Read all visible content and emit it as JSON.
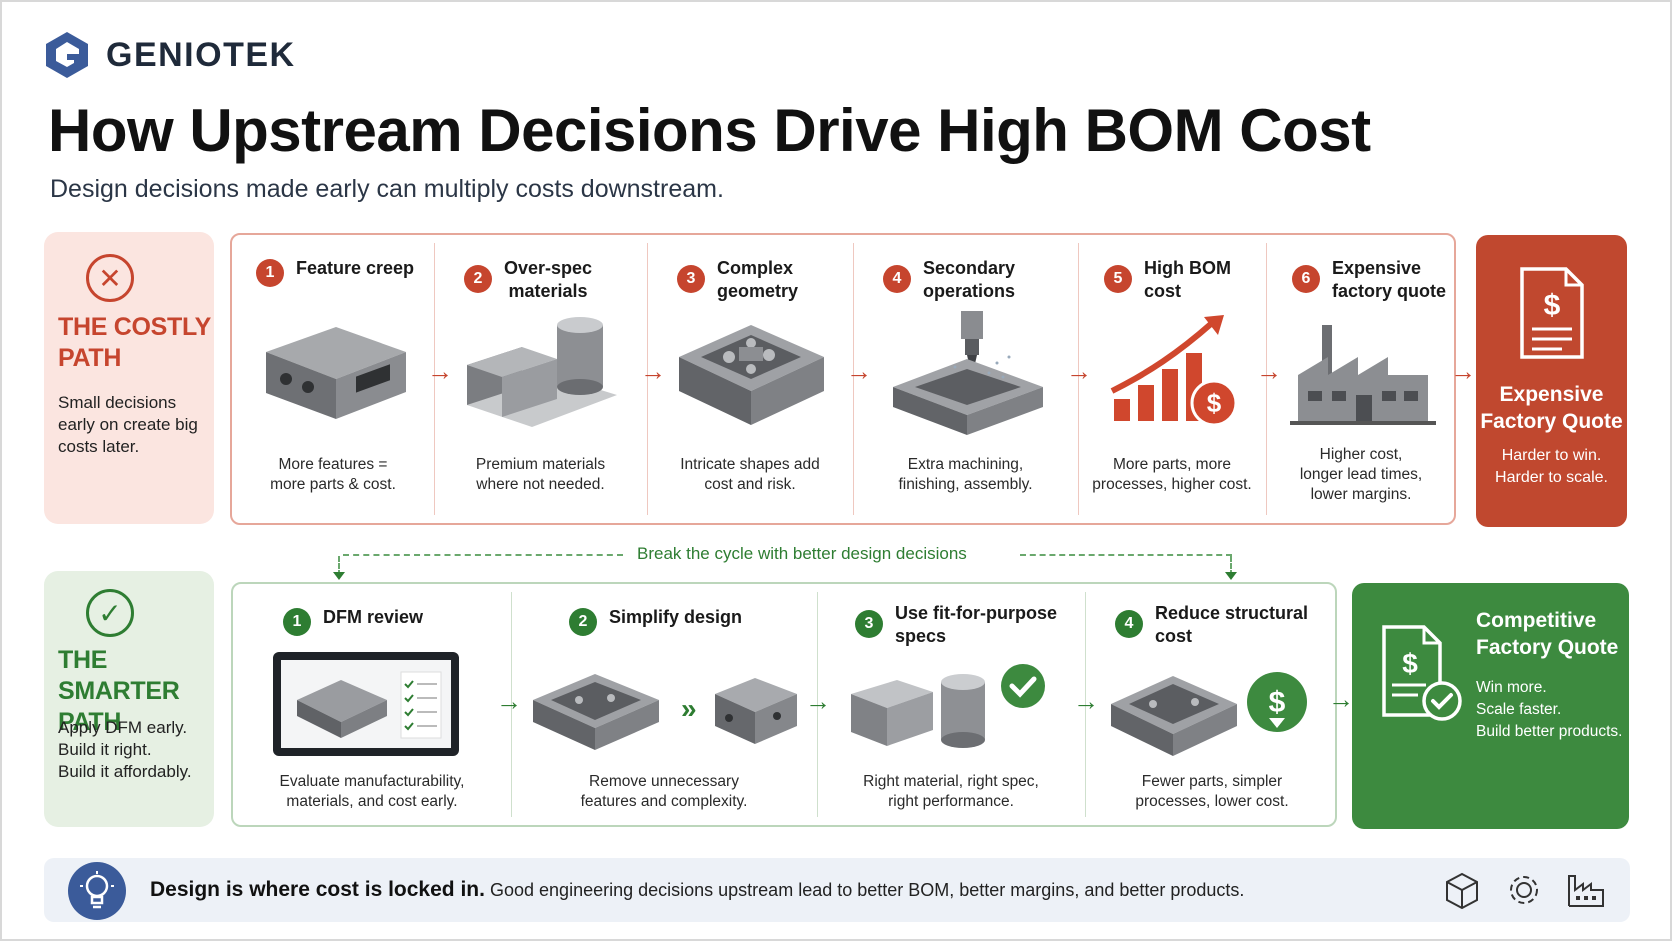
{
  "brand": {
    "name": "GENIOTEK"
  },
  "header": {
    "title": "How Upstream Decisions Drive High BOM Cost",
    "subtitle": "Design decisions made early can multiply costs downstream."
  },
  "costly_path": {
    "title_line1": "THE COSTLY",
    "title_line2": "PATH",
    "body": "Small decisions early on create big costs later.",
    "steps": [
      {
        "num": "1",
        "title_l1": "Feature creep",
        "title_l2": "",
        "desc_l1": "More features =",
        "desc_l2": "more parts & cost.",
        "desc_l3": "",
        "icon": "machined-block-icon"
      },
      {
        "num": "2",
        "title_l1": "Over-spec",
        "title_l2": "materials",
        "desc_l1": "Premium materials",
        "desc_l2": "where not needed.",
        "desc_l3": "",
        "icon": "metal-stock-icon"
      },
      {
        "num": "3",
        "title_l1": "Complex",
        "title_l2": "geometry",
        "desc_l1": "Intricate shapes add",
        "desc_l2": "cost and risk.",
        "desc_l3": "",
        "icon": "complex-part-icon"
      },
      {
        "num": "4",
        "title_l1": "Secondary",
        "title_l2": "operations",
        "desc_l1": "Extra machining,",
        "desc_l2": "finishing, assembly.",
        "desc_l3": "",
        "icon": "milling-icon"
      },
      {
        "num": "5",
        "title_l1": "High BOM",
        "title_l2": "cost",
        "desc_l1": "More parts, more",
        "desc_l2": "processes, higher cost.",
        "desc_l3": "",
        "icon": "rising-cost-icon"
      },
      {
        "num": "6",
        "title_l1": "Expensive",
        "title_l2": "factory quote",
        "desc_l1": "Higher cost,",
        "desc_l2": "longer lead times,",
        "desc_l3": "lower margins.",
        "icon": "factory-icon"
      }
    ],
    "result": {
      "title_l1": "Expensive",
      "title_l2": "Factory Quote",
      "body_l1": "Harder to win.",
      "body_l2": "Harder to scale.",
      "icon": "invoice-dollar-icon"
    }
  },
  "cycle_break": {
    "label": "Break the cycle with better design decisions"
  },
  "smarter_path": {
    "title_line1": "THE SMARTER",
    "title_line2": "PATH",
    "body_l1": "Apply DFM early.",
    "body_l2": "Build it right.",
    "body_l3": "Build it affordably.",
    "steps": [
      {
        "num": "1",
        "title_l1": "DFM review",
        "title_l2": "",
        "desc_l1": "Evaluate manufacturability,",
        "desc_l2": "materials, and cost early.",
        "icon": "dfm-monitor-icon"
      },
      {
        "num": "2",
        "title_l1": "Simplify design",
        "title_l2": "",
        "desc_l1": "Remove unnecessary",
        "desc_l2": "features and complexity.",
        "icon": "simplify-part-icon"
      },
      {
        "num": "3",
        "title_l1": "Use fit-for-purpose",
        "title_l2": "specs",
        "desc_l1": "Right material, right spec,",
        "desc_l2": "right performance.",
        "icon": "material-check-icon"
      },
      {
        "num": "4",
        "title_l1": "Reduce structural",
        "title_l2": "cost",
        "desc_l1": "Fewer parts, simpler",
        "desc_l2": "processes, lower cost.",
        "icon": "cost-down-icon"
      }
    ],
    "result": {
      "title_l1": "Competitive",
      "title_l2": "Factory Quote",
      "body_l1": "Win more.",
      "body_l2": "Scale faster.",
      "body_l3": "Build better products.",
      "icon": "invoice-check-icon"
    }
  },
  "footer": {
    "strong": "Design is where cost is locked in.",
    "text": "Good engineering decisions upstream lead to better BOM, better margins, and better products.",
    "icons": [
      "cube-icon",
      "gear-icon",
      "factory-outline-icon"
    ]
  },
  "colors": {
    "costly": "#c6452e",
    "smarter": "#2e7d32",
    "navy": "#1f2a3a",
    "footer_bg": "#edf1f7"
  }
}
